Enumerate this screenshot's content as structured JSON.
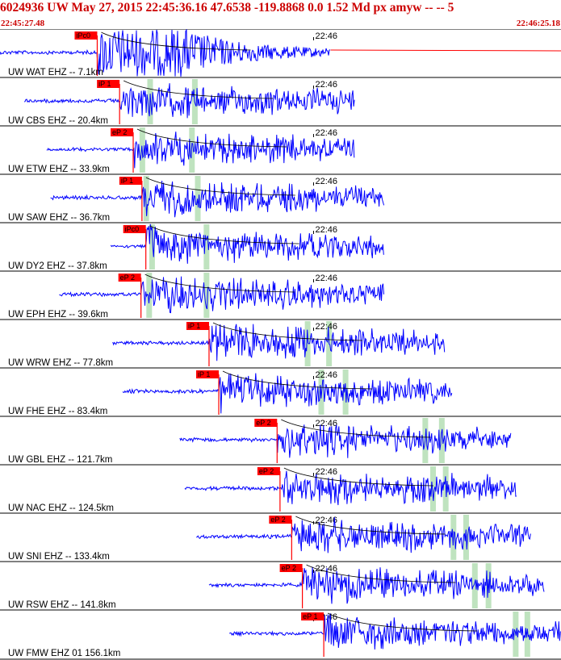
{
  "header": {
    "title": "6024936 UW May 27, 2015 22:45:36.16   47.6538 -119.8868  0.0 1.52 Md px amyw -- --   5",
    "start_time": "22:45:27.48",
    "end_time": "22:46:25.18"
  },
  "colors": {
    "trace": "#0000ff",
    "pick_marker": "#ff0000",
    "amplitude_window": "#bfe3bf",
    "header_text": "#cc0000",
    "decay_curve": "#000000"
  },
  "chart_data": {
    "type": "line",
    "title": "6024936 UW May 27, 2015 22:45:36.16   47.6538 -119.8868  0.0 1.52 Md px amyw -- --   5",
    "xlabel": "",
    "ylabel": "",
    "x_range_seconds": [
      0,
      57.7
    ],
    "time_tick_label": "22:46",
    "time_tick_second": 32.5,
    "grid": false,
    "traces": [
      {
        "label": "UW WAT EHZ -- 7.1km",
        "pick": "iPc0",
        "pick_second": 10.0,
        "start_second": 0,
        "end_second": 34.0,
        "amp_window_seconds": [],
        "amplitude": "clipped",
        "coda_tail": true
      },
      {
        "label": "UW CBS EHZ -- 20.4km",
        "pick": "iP 1",
        "pick_second": 12.3,
        "start_second": 2.5,
        "end_second": 36.5,
        "amp_window_seconds": [
          15.4,
          20.0
        ]
      },
      {
        "label": "UW ETW EHZ -- 33.9km",
        "pick": "eP 2",
        "pick_second": 13.7,
        "start_second": 4.8,
        "end_second": 36.5,
        "amp_window_seconds": [
          14.6,
          19.7
        ]
      },
      {
        "label": "UW SAW EHZ -- 36.7km",
        "pick": "iP 1",
        "pick_second": 14.6,
        "start_second": 5.2,
        "end_second": 39.5,
        "amp_window_seconds": [
          15.0,
          20.3
        ]
      },
      {
        "label": "UW DY2 EHZ -- 37.8km",
        "pick": "iPc0",
        "pick_second": 15.0,
        "start_second": 11.4,
        "end_second": 39.5,
        "amp_window_seconds": [
          15.6,
          21.2
        ]
      },
      {
        "label": "UW EPH EHZ -- 39.6km",
        "pick": "eP 2",
        "pick_second": 14.5,
        "start_second": 6.1,
        "end_second": 39.5,
        "amp_window_seconds": [
          15.3,
          21.2
        ]
      },
      {
        "label": "UW WRW EHZ -- 77.8km",
        "pick": "iP 1",
        "pick_second": 21.5,
        "start_second": 11.6,
        "end_second": 45.8,
        "amp_window_seconds": [
          31.6,
          33.8
        ]
      },
      {
        "label": "UW FHE EHZ -- 83.4km",
        "pick": "iP 1",
        "pick_second": 22.5,
        "start_second": 12.6,
        "end_second": 46.5,
        "amp_window_seconds": [
          33.0,
          35.5
        ]
      },
      {
        "label": "UW GBL EHZ -- 121.7km",
        "pick": "eP 2",
        "pick_second": 28.5,
        "start_second": 18.5,
        "end_second": 52.6,
        "amp_window_seconds": [
          43.7,
          45.4
        ]
      },
      {
        "label": "UW NAC EHZ -- 124.5km",
        "pick": "eP 2",
        "pick_second": 28.8,
        "start_second": 19.0,
        "end_second": 53.2,
        "amp_window_seconds": [
          44.5,
          45.8
        ]
      },
      {
        "label": "UW SNI EHZ -- 133.4km",
        "pick": "eP 2",
        "pick_second": 30.0,
        "start_second": 20.2,
        "end_second": 54.6,
        "amp_window_seconds": [
          46.6,
          47.9
        ]
      },
      {
        "label": "UW RSW EHZ -- 141.8km",
        "pick": "eP 2",
        "pick_second": 31.1,
        "start_second": 21.5,
        "end_second": 56.0,
        "amp_window_seconds": [
          48.8,
          50.2
        ]
      },
      {
        "label": "UW FMW EHZ 01 156.1km",
        "pick": "eP 1",
        "pick_second": 33.3,
        "start_second": 23.6,
        "end_second": 57.7,
        "amp_window_seconds": [
          53.0,
          54.2
        ]
      }
    ]
  }
}
